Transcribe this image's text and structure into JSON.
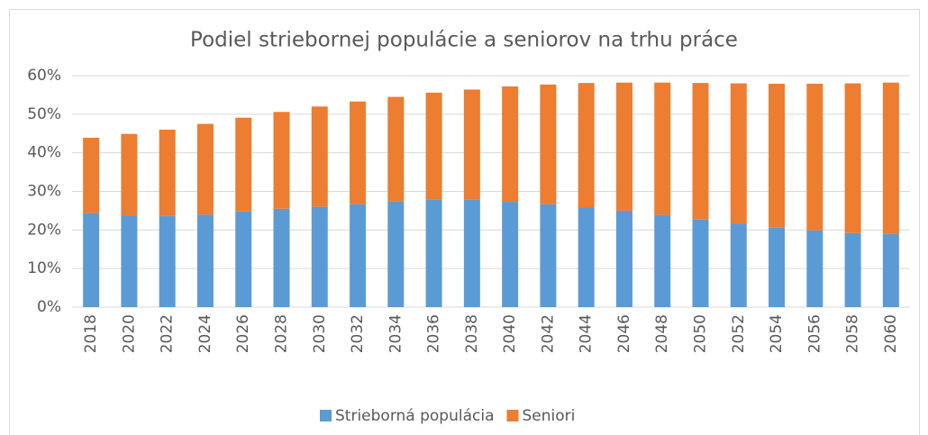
{
  "chart_data": {
    "type": "stacked_bar",
    "title": "Podiel striebornej populácie a seniorov na trhu práce",
    "categories": [
      "2018",
      "2020",
      "2022",
      "2024",
      "2026",
      "2028",
      "2030",
      "2032",
      "2034",
      "2036",
      "2038",
      "2040",
      "2042",
      "2044",
      "2046",
      "2048",
      "2050",
      "2052",
      "2054",
      "2056",
      "2058",
      "2060"
    ],
    "series": [
      {
        "name": "Strieborná populácia",
        "color": "#5b9bd5",
        "values": [
          24.3,
          23.8,
          23.6,
          24.0,
          24.8,
          25.5,
          26.0,
          26.7,
          27.4,
          27.8,
          27.8,
          27.3,
          26.7,
          25.9,
          25.0,
          23.9,
          22.7,
          21.6,
          20.6,
          19.9,
          19.2,
          19.0
        ]
      },
      {
        "name": "Seniori",
        "color": "#ed7d31",
        "values": [
          19.6,
          21.1,
          22.4,
          23.5,
          24.3,
          25.1,
          26.0,
          26.6,
          27.1,
          27.8,
          28.6,
          29.9,
          31.0,
          32.2,
          33.2,
          34.3,
          35.4,
          36.4,
          37.3,
          38.0,
          38.8,
          39.2
        ]
      }
    ],
    "ylim": [
      0,
      60
    ],
    "yticks": [
      {
        "value": 0,
        "label": "0%"
      },
      {
        "value": 10,
        "label": "10%"
      },
      {
        "value": 20,
        "label": "20%"
      },
      {
        "value": 30,
        "label": "30%"
      },
      {
        "value": 40,
        "label": "40%"
      },
      {
        "value": 50,
        "label": "50%"
      },
      {
        "value": 60,
        "label": "60%"
      }
    ],
    "grid": true,
    "legend": "bottom"
  }
}
